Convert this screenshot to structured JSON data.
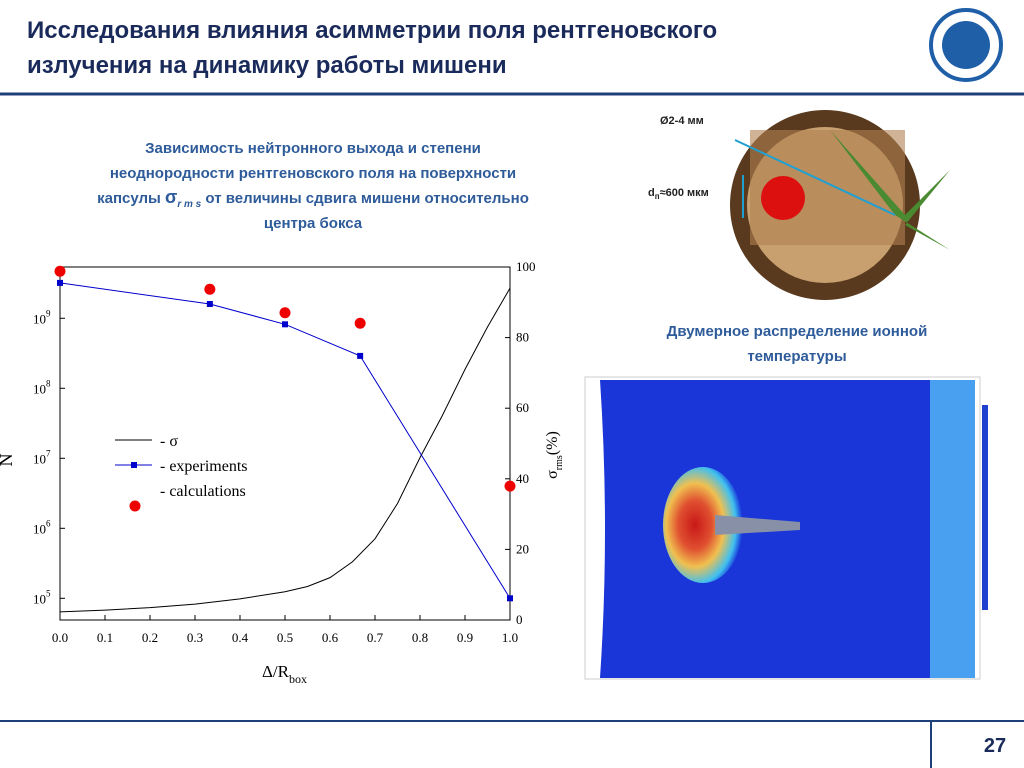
{
  "header": {
    "title": [
      "Исследования влияния асимметрии поля рентгеновского",
      "излучения на динамику работы мишени"
    ]
  },
  "caption": {
    "lines": [
      "Зависимость нейтронного выхода и степени",
      "неоднородности рентгеновского поля на поверхности"
    ],
    "sym_line": {
      "pre": "капсулы ",
      "symbol": "σ",
      "sub": "r m s",
      "post": " от величины сдвига мишени относительно"
    },
    "end": "центра бокса"
  },
  "diagram": {
    "diameter_label": "Ø2-4 мм",
    "thickness": {
      "base": "d",
      "sub": "п",
      "rest": "≈600 мкм"
    }
  },
  "heatmap_caption": [
    "Двумерное распределение ионной",
    "температуры"
  ],
  "page_number": "27",
  "chart_data": {
    "type": "scatter",
    "log_y": true,
    "xlabel": "Δ/R",
    "xlabel_sub": "box",
    "ylabel": "N",
    "y2label": "σ",
    "y2label_sub": "rms",
    "y2label_suffix": "(%)",
    "xlim": [
      0,
      1
    ],
    "xticks": [
      {
        "value": 0,
        "label": "0.0"
      },
      0.1,
      0.2,
      0.3,
      0.4,
      0.5,
      0.6,
      0.7,
      0.8,
      0.9,
      {
        "value": 1,
        "label": "1.0"
      }
    ],
    "ylim": [
      49000,
      5400000000
    ],
    "yticks": [
      {
        "value": 100000,
        "label": "10",
        "exponent": "5"
      },
      {
        "value": 1000000,
        "label": "10",
        "exponent": "6"
      },
      {
        "value": 10000000,
        "label": "10",
        "exponent": "7"
      },
      {
        "value": 100000000,
        "label": "10",
        "exponent": "8"
      },
      {
        "value": 1000000000,
        "label": "10",
        "exponent": "9"
      }
    ],
    "y2lim": [
      0,
      100
    ],
    "y2ticks": [
      0,
      20,
      40,
      60,
      80,
      100
    ],
    "series": [
      {
        "name": "- σ",
        "color": "#000000",
        "axis": "y2",
        "style": "line",
        "x": [
          0,
          0.1,
          0.2,
          0.3,
          0.4,
          0.5,
          0.55,
          0.6,
          0.65,
          0.7,
          0.75,
          0.8,
          0.85,
          0.9,
          0.95,
          1.0
        ],
        "values": [
          2.3,
          2.8,
          3.5,
          4.5,
          6,
          8,
          9.5,
          12,
          16.5,
          23,
          33,
          46,
          58,
          71,
          83,
          94
        ]
      },
      {
        "name": "- experiments",
        "color": "#0000cc",
        "style": "line-marker",
        "x": [
          0,
          0.333,
          0.5,
          0.667,
          1.0
        ],
        "values": [
          3200000000,
          1600000000,
          820000000,
          290000000,
          100000
        ]
      },
      {
        "name": "- calculations",
        "color": "#ee0000",
        "style": "dot",
        "x": [
          0,
          0.333,
          0.5,
          0.667,
          1.0
        ],
        "values": [
          4700000000,
          2600000000,
          1200000000,
          850000000,
          4000000
        ]
      }
    ]
  }
}
